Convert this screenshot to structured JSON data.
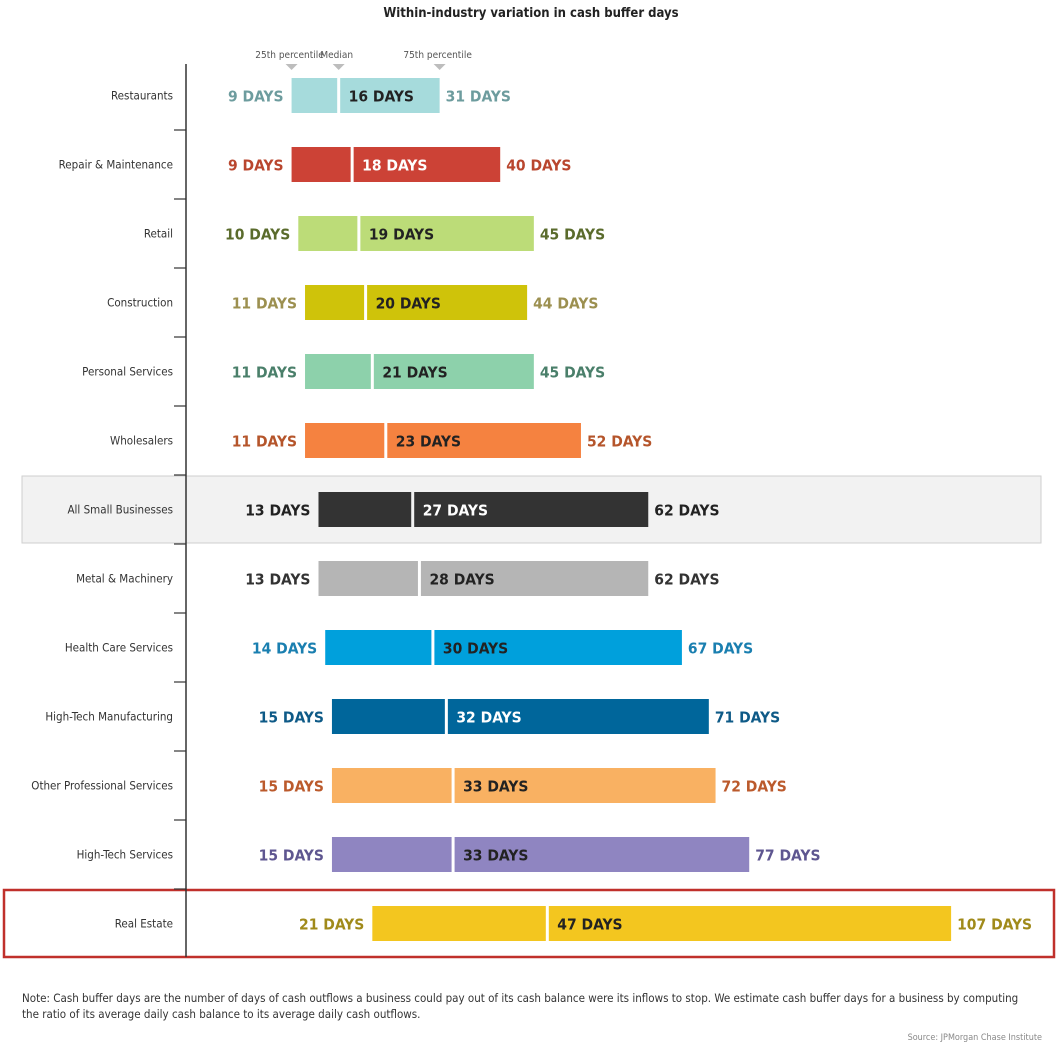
{
  "chart_data": {
    "type": "bar",
    "subtype": "floating-range (25th percentile to 75th percentile with median split)",
    "title": "Within-industry variation in cash buffer days",
    "header_labels": {
      "p25": "25th percentile",
      "median": "Median",
      "p75": "75th percentile"
    },
    "unit_suffix": "DAYS",
    "categories": [
      "Restaurants",
      "Repair & Maintenance",
      "Retail",
      "Construction",
      "Personal Services",
      "Wholesalers",
      "All Small Businesses",
      "Metal & Machinery",
      "Health Care Services",
      "High-Tech Manufacturing",
      "Other Professional Services",
      "High-Tech Services",
      "Real Estate"
    ],
    "series": [
      {
        "name": "25th percentile",
        "values": [
          9,
          9,
          10,
          11,
          11,
          11,
          13,
          13,
          14,
          15,
          15,
          15,
          21
        ]
      },
      {
        "name": "Median",
        "values": [
          16,
          18,
          19,
          20,
          21,
          23,
          27,
          28,
          30,
          32,
          33,
          33,
          47
        ]
      },
      {
        "name": "75th percentile",
        "values": [
          31,
          40,
          45,
          44,
          45,
          52,
          62,
          62,
          67,
          71,
          72,
          77,
          107
        ]
      }
    ],
    "labels": {
      "p25": [
        "9 DAYS",
        "9 DAYS",
        "10 DAYS",
        "11 DAYS",
        "11 DAYS",
        "11 DAYS",
        "13 DAYS",
        "13 DAYS",
        "14 DAYS",
        "15 DAYS",
        "15 DAYS",
        "15 DAYS",
        "21 DAYS"
      ],
      "median": [
        "16 DAYS",
        "18 DAYS",
        "19 DAYS",
        "20 DAYS",
        "21 DAYS",
        "23 DAYS",
        "27 DAYS",
        "28 DAYS",
        "30 DAYS",
        "32 DAYS",
        "33 DAYS",
        "33 DAYS",
        "47 DAYS"
      ],
      "p75": [
        "31 DAYS",
        "40 DAYS",
        "45 DAYS",
        "44 DAYS",
        "45 DAYS",
        "52 DAYS",
        "62 DAYS",
        "62 DAYS",
        "67 DAYS",
        "71 DAYS",
        "72 DAYS",
        "77 DAYS",
        "107 DAYS"
      ]
    },
    "colors": [
      "#a6dbdc",
      "#cc4236",
      "#bcdc78",
      "#cfc30a",
      "#8dd1ab",
      "#f58240",
      "#333333",
      "#b5b5b5",
      "#00a0dc",
      "#00669b",
      "#f9b162",
      "#8f85c1",
      "#f3c61f"
    ],
    "label_colors": [
      "#6d9c9e",
      "#b9462e",
      "#5a6b2c",
      "#9c9050",
      "#4a7f6a",
      "#b5552b",
      "#222222",
      "#333333",
      "#1a7fb0",
      "#0e5a87",
      "#bb5a2c",
      "#5e5690",
      "#a08a1a"
    ],
    "highlighted": [
      "All Small Businesses",
      "Real Estate"
    ],
    "highlight_colors": {
      "All Small Businesses": "#f2f2f2",
      "Real Estate": "#c0302b"
    },
    "xlim": [
      0,
      107
    ],
    "note": "Note: Cash buffer days are the number of days of cash outflows a business could pay out of its cash balance were its inflows to stop. We estimate cash buffer days for a business by computing the ratio of its average daily cash balance to its average daily cash outflows.",
    "source": "Source:  JPMorgan Chase Institute"
  }
}
